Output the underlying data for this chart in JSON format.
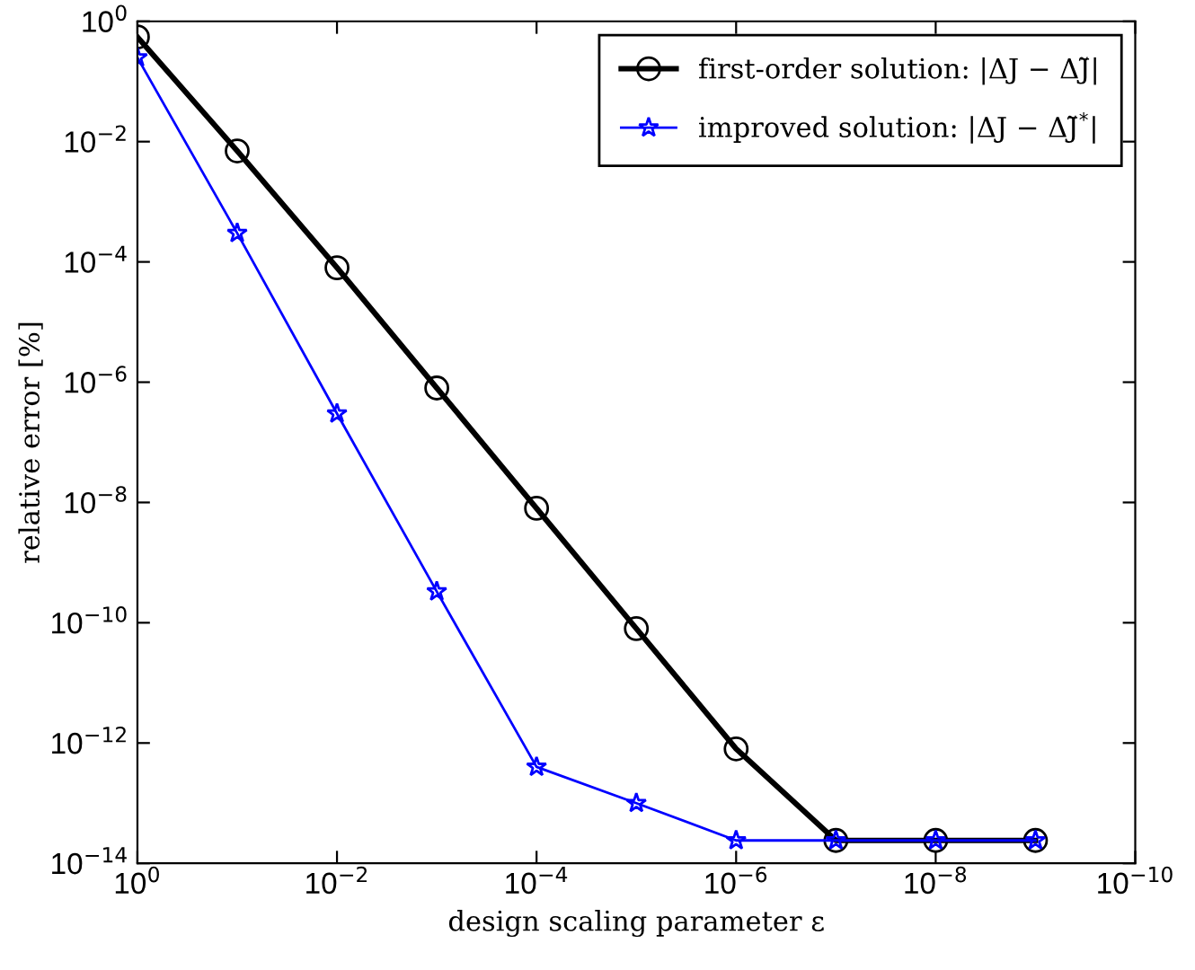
{
  "chart_data": {
    "type": "line",
    "xlabel": "design scaling parameter ε",
    "ylabel": "relative error [%]",
    "x": [
      1,
      0.1,
      0.01,
      0.001,
      0.0001,
      1e-05,
      1e-06,
      1e-07,
      1e-08,
      1e-09
    ],
    "series": [
      {
        "name": "first-order solution: |ΔJ − ΔJ̃|",
        "color": "#000000",
        "marker": "circle",
        "values": [
          0.55,
          0.007,
          8e-05,
          8e-07,
          8e-09,
          8e-11,
          8e-13,
          2.4e-14,
          2.4e-14,
          2.4e-14
        ]
      },
      {
        "name": "improved solution: |ΔJ − ΔJ̃$^{*}$|",
        "color": "#0000ff",
        "marker": "star",
        "values": [
          0.25,
          0.0003,
          3e-07,
          3.3e-10,
          4e-13,
          1e-13,
          2.4e-14,
          2.4e-14,
          2.4e-14,
          2.4e-14
        ]
      }
    ],
    "log": "xy",
    "xlim": [
      1,
      1e-10
    ],
    "ylim": [
      1e-14,
      1
    ],
    "xticks": [
      {
        "value": 1,
        "label": "10$^{0}$"
      },
      {
        "value": 0.01,
        "label": "10$^{−2}$"
      },
      {
        "value": 0.0001,
        "label": "10$^{−4}$"
      },
      {
        "value": 1e-06,
        "label": "10$^{−6}$"
      },
      {
        "value": 1e-08,
        "label": "10$^{−8}$"
      },
      {
        "value": 1e-10,
        "label": "10$^{−10}$"
      }
    ],
    "yticks": [
      {
        "value": 1,
        "label": "10$^{0}$"
      },
      {
        "value": 0.01,
        "label": "10$^{−2}$"
      },
      {
        "value": 0.0001,
        "label": "10$^{−4}$"
      },
      {
        "value": 1e-06,
        "label": "10$^{−6}$"
      },
      {
        "value": 1e-08,
        "label": "10$^{−8}$"
      },
      {
        "value": 1e-10,
        "label": "10$^{−10}$"
      },
      {
        "value": 1e-12,
        "label": "10$^{−12}$"
      },
      {
        "value": 1e-14,
        "label": "10$^{−14}$"
      }
    ],
    "grid": false,
    "legend": "top right",
    "line_style": "solid"
  }
}
